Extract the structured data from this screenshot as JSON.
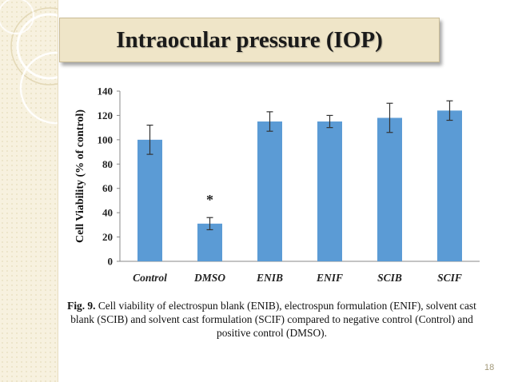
{
  "slide": {
    "title": "Intraocular pressure (IOP)",
    "page_number": "18",
    "caption_label": "Fig. 9.",
    "caption_text": " Cell viability of electrospun blank (ENIB), electrospun formulation (ENIF), solvent cast blank (SCIB) and solvent cast formulation (SCIF) compared to negative control (Control) and positive control (DMSO)."
  },
  "colors": {
    "bar": "#5b9bd5",
    "axis": "#888888",
    "error": "#333333"
  },
  "chart_data": {
    "type": "bar",
    "title": "",
    "xlabel": "",
    "ylabel": "Cell Viability (% of control)",
    "categories": [
      "Control",
      "DMSO",
      "ENIB",
      "ENIF",
      "SCIB",
      "SCIF"
    ],
    "values": [
      100,
      31,
      115,
      115,
      118,
      124
    ],
    "errors": [
      12,
      5,
      8,
      5,
      12,
      8
    ],
    "ylim": [
      0,
      140
    ],
    "yticks": [
      0,
      20,
      40,
      60,
      80,
      100,
      120,
      140
    ],
    "grid": false,
    "annotations": [
      {
        "category": "DMSO",
        "text": "*"
      }
    ]
  }
}
